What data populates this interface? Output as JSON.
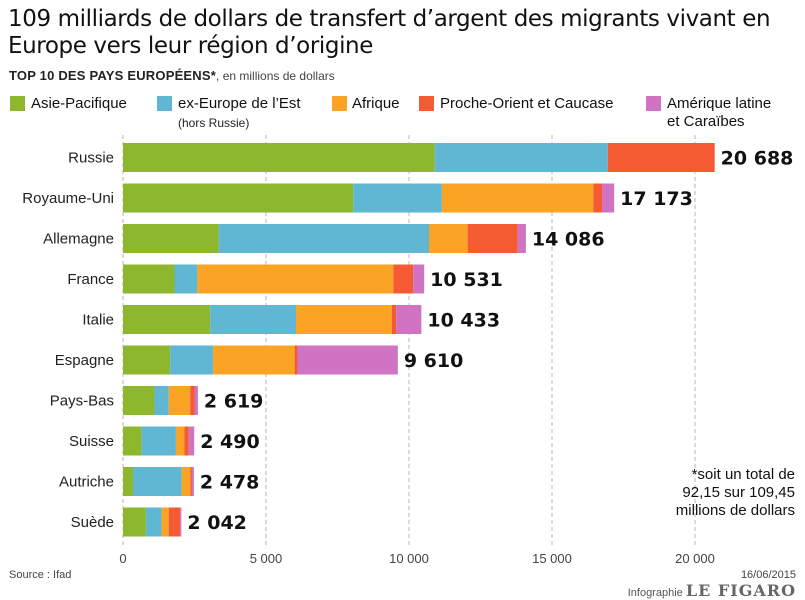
{
  "header": {
    "title": "109 milliards de dollars de transfert d’argent des migrants vivant en Europe vers leur région d’origine",
    "subtitle_main": "TOP 10 DES PAYS EUROPÉENS*",
    "subtitle_note": ", en millions de dollars"
  },
  "legend": {
    "items": [
      {
        "label": "Asie-Pacifique",
        "color": "#8db72c"
      },
      {
        "label": "ex-Europe de l’Est",
        "sub": "(hors Russie)",
        "color": "#5fb7d3"
      },
      {
        "label": "Afrique",
        "color": "#fba324"
      },
      {
        "label": "Proche-Orient et Caucase",
        "color": "#f55b33"
      },
      {
        "label": "Amérique latine",
        "label2": "et Caraïbes",
        "color": "#d173c3"
      }
    ]
  },
  "footnote": [
    "*soit un total de",
    "92,15 sur 109,45",
    "millions de dollars"
  ],
  "footer": {
    "source": "Source : Ifad",
    "date": "16/06/2015",
    "credit_prefix": "Infographie",
    "credit_logo": "LE FIGARO"
  },
  "chart_data": {
    "type": "bar",
    "orientation": "horizontal",
    "stacked": true,
    "categories": [
      "Russie",
      "Royaume-Uni",
      "Allemagne",
      "France",
      "Italie",
      "Espagne",
      "Pays-Bas",
      "Suisse",
      "Autriche",
      "Suède"
    ],
    "totals": [
      20688,
      17173,
      14086,
      10531,
      10433,
      9610,
      2619,
      2490,
      2478,
      2042
    ],
    "total_labels": [
      "20 688",
      "17 173",
      "14 086",
      "10 531",
      "10 433",
      "9 610",
      "2 619",
      "2 490",
      "2 478",
      "2 042"
    ],
    "series": [
      {
        "name": "Asie-Pacifique",
        "color": "#8db72c",
        "values": [
          10900,
          8050,
          3350,
          1800,
          3050,
          1650,
          1100,
          650,
          350,
          800
        ]
      },
      {
        "name": "ex-Europe de l’Est (hors Russie)",
        "color": "#5fb7d3",
        "values": [
          6050,
          3100,
          7350,
          800,
          3000,
          1500,
          500,
          1200,
          1700,
          550
        ]
      },
      {
        "name": "Afrique",
        "color": "#fba324",
        "values": [
          0,
          5300,
          1350,
          6850,
          3350,
          2850,
          750,
          300,
          300,
          250
        ]
      },
      {
        "name": "Proche-Orient et Caucase",
        "color": "#f55b33",
        "values": [
          3738,
          300,
          1750,
          700,
          150,
          100,
          150,
          150,
          60,
          400
        ]
      },
      {
        "name": "Amérique latine et Caraïbes",
        "color": "#d173c3",
        "values": [
          0,
          423,
          286,
          381,
          883,
          3510,
          119,
          190,
          68,
          42
        ]
      }
    ],
    "xlim": [
      0,
      22000
    ],
    "xticks": [
      0,
      5000,
      10000,
      15000,
      20000
    ],
    "xtick_labels": [
      "0",
      "5 000",
      "10 000",
      "15 000",
      "20 000"
    ],
    "grid": "vertical dashed"
  }
}
